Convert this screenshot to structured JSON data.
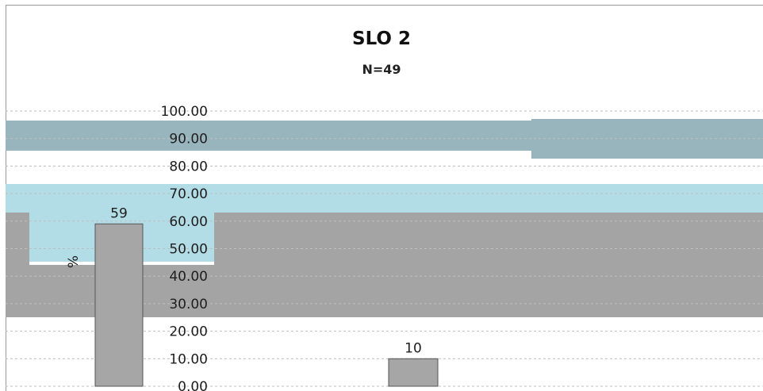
{
  "chart_data": {
    "type": "bar",
    "title": "SLO 2",
    "subtitle": "N=49",
    "ylabel": "%",
    "ylim": [
      0,
      100
    ],
    "yticks": [
      "0.00",
      "10.00",
      "20.00",
      "30.00",
      "40.00",
      "50.00",
      "60.00",
      "70.00",
      "80.00",
      "90.00",
      "100.00"
    ],
    "values": [
      59,
      10
    ],
    "data_labels": [
      "59",
      "10"
    ],
    "grid": true
  },
  "colors": {
    "background": "#ffffff",
    "band_light": "#b3dde6",
    "band_mid": "#98b4bc",
    "band_gray": "#a4a4a4",
    "bar": "#a6a6a6",
    "gridline": "#bfbfbf",
    "text": "#1e1e1e"
  }
}
